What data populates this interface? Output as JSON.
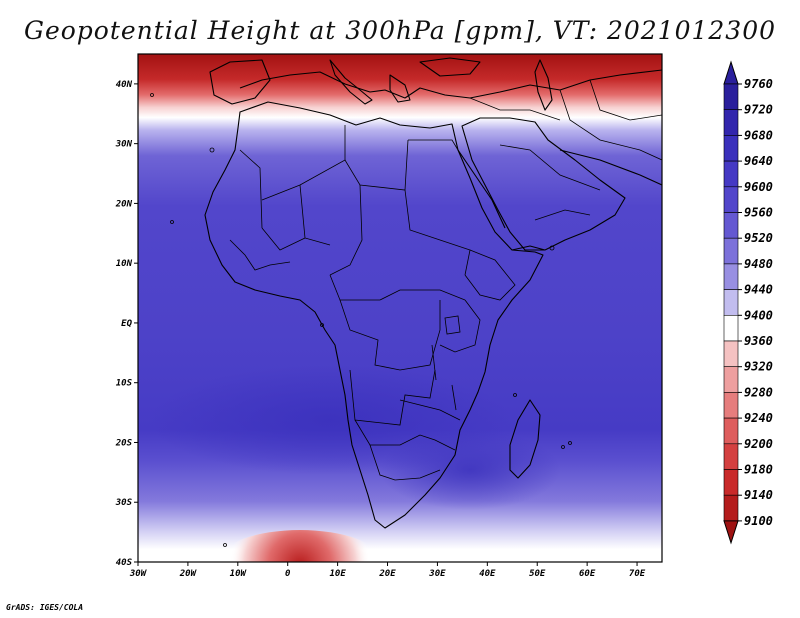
{
  "title": "Geopotential Height at 300hPa [gpm], VT: 2021012300",
  "credit": "GrADS: IGES/COLA",
  "map": {
    "lon_range": [
      -30,
      75
    ],
    "lat_range": [
      -40,
      45
    ],
    "x_ticks": [
      {
        "lon": -30,
        "label": "30W"
      },
      {
        "lon": -20,
        "label": "20W"
      },
      {
        "lon": -10,
        "label": "10W"
      },
      {
        "lon": 0,
        "label": "0"
      },
      {
        "lon": 10,
        "label": "10E"
      },
      {
        "lon": 20,
        "label": "20E"
      },
      {
        "lon": 30,
        "label": "30E"
      },
      {
        "lon": 40,
        "label": "40E"
      },
      {
        "lon": 50,
        "label": "50E"
      },
      {
        "lon": 60,
        "label": "60E"
      },
      {
        "lon": 70,
        "label": "70E"
      }
    ],
    "y_ticks": [
      {
        "lat": 40,
        "label": "40N"
      },
      {
        "lat": 30,
        "label": "30N"
      },
      {
        "lat": 20,
        "label": "20N"
      },
      {
        "lat": 10,
        "label": "10N"
      },
      {
        "lat": 0,
        "label": "EQ"
      },
      {
        "lat": -10,
        "label": "10S"
      },
      {
        "lat": -20,
        "label": "20S"
      },
      {
        "lat": -30,
        "label": "30S"
      },
      {
        "lat": -40,
        "label": "40S"
      }
    ]
  },
  "colorbar": {
    "levels": [
      "9760",
      "9720",
      "9680",
      "9640",
      "9600",
      "9560",
      "9520",
      "9480",
      "9440",
      "9400",
      "9360",
      "9320",
      "9280",
      "9240",
      "9200",
      "9180",
      "9140",
      "9100"
    ],
    "colors": [
      "#2a1f9c",
      "#3226ad",
      "#3a30bc",
      "#4539c4",
      "#5246cb",
      "#6458d2",
      "#7c71da",
      "#988fe2",
      "#c2bdef",
      "#ffffff",
      "#f5c2c2",
      "#ee9f9f",
      "#e67d7d",
      "#de5d5d",
      "#d44040",
      "#c92a2a",
      "#b41c1c",
      "#9e1212"
    ]
  }
}
